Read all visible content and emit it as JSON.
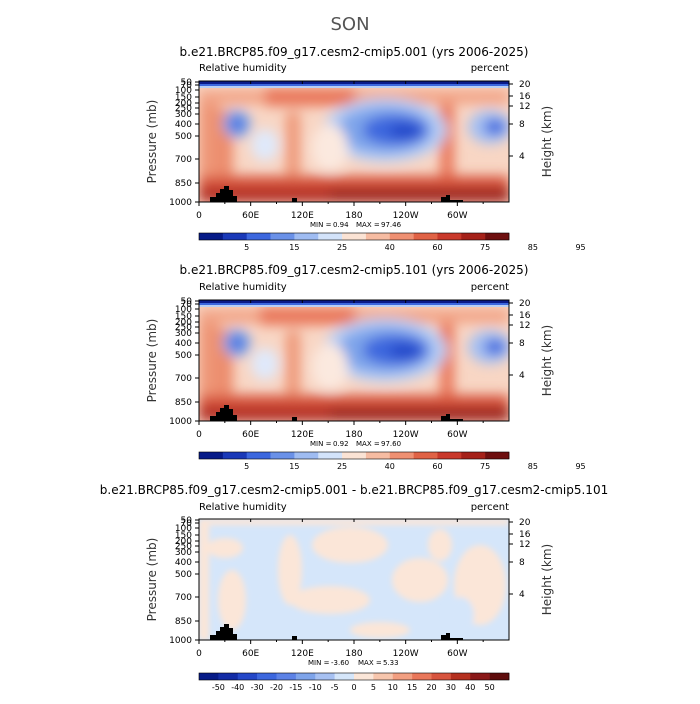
{
  "figure": {
    "title": "SON"
  },
  "chart_data": [
    {
      "type": "heatmap",
      "title": "b.e21.BRCP85.f09_g17.cesm2-cmip5.001 (yrs 2006-2025)",
      "left_label": "Relative humidity",
      "right_label": "percent",
      "ylabel": "Pressure (mb)",
      "y2label": "Height (km)",
      "x_ticks": [
        "0",
        "60E",
        "120E",
        "180",
        "120W",
        "60W"
      ],
      "y_ticks": [
        "50",
        "70",
        "100",
        "150",
        "200",
        "250",
        "300",
        "400",
        "500",
        "700",
        "850",
        "1000"
      ],
      "y2_ticks": [
        "20",
        "16",
        "12",
        "8",
        "4"
      ],
      "stats": {
        "min_label": "MIN =",
        "min": "0.94",
        "max_label": "MAX =",
        "max": "97.46"
      },
      "colorbar": {
        "labels": [
          "5",
          "15",
          "25",
          "40",
          "60",
          "75",
          "85",
          "95"
        ]
      }
    },
    {
      "type": "heatmap",
      "title": "b.e21.BRCP85.f09_g17.cesm2-cmip5.101 (yrs 2006-2025)",
      "left_label": "Relative humidity",
      "right_label": "percent",
      "ylabel": "Pressure (mb)",
      "y2label": "Height (km)",
      "x_ticks": [
        "0",
        "60E",
        "120E",
        "180",
        "120W",
        "60W"
      ],
      "y_ticks": [
        "50",
        "70",
        "100",
        "150",
        "200",
        "250",
        "300",
        "400",
        "500",
        "700",
        "850",
        "1000"
      ],
      "y2_ticks": [
        "20",
        "16",
        "12",
        "8",
        "4"
      ],
      "stats": {
        "min_label": "MIN =",
        "min": "0.92",
        "max_label": "MAX =",
        "max": "97.60"
      },
      "colorbar": {
        "labels": [
          "5",
          "15",
          "25",
          "40",
          "60",
          "75",
          "85",
          "95"
        ]
      }
    },
    {
      "type": "heatmap",
      "title": "b.e21.BRCP85.f09_g17.cesm2-cmip5.001 - b.e21.BRCP85.f09_g17.cesm2-cmip5.101",
      "left_label": "Relative humidity",
      "right_label": "percent",
      "ylabel": "Pressure (mb)",
      "y2label": "Height (km)",
      "x_ticks": [
        "0",
        "60E",
        "120E",
        "180",
        "120W",
        "60W"
      ],
      "y_ticks": [
        "50",
        "70",
        "100",
        "150",
        "200",
        "250",
        "300",
        "400",
        "500",
        "700",
        "850",
        "1000"
      ],
      "y2_ticks": [
        "20",
        "16",
        "12",
        "8",
        "4"
      ],
      "stats": {
        "min_label": "MIN =",
        "min": "-3.60",
        "max_label": "MAX =",
        "max": "5.33"
      },
      "colorbar": {
        "labels": [
          "-50",
          "-40",
          "-30",
          "-20",
          "-15",
          "-10",
          "-5",
          "0",
          "5",
          "10",
          "15",
          "20",
          "30",
          "40",
          "50"
        ]
      }
    }
  ]
}
